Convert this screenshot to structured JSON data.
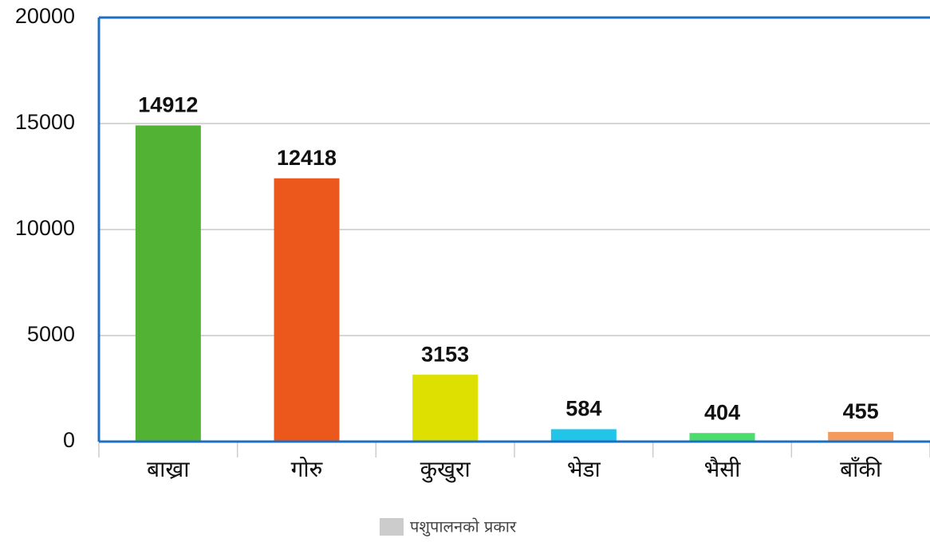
{
  "chart_data": {
    "type": "bar",
    "categories": [
      "बाख्रा",
      "गोरु",
      "कुखुरा",
      "भेडा",
      "भैसी",
      "बाँकी"
    ],
    "values": [
      14912,
      12418,
      3153,
      584,
      404,
      455
    ],
    "colors": [
      "#52b233",
      "#ec581c",
      "#dde000",
      "#22c4e8",
      "#4cdc6c",
      "#f49a5e"
    ],
    "ylim": [
      0,
      20000
    ],
    "yticks": [
      0,
      5000,
      10000,
      15000,
      20000
    ],
    "grid": true,
    "legend": {
      "label": "पशुपालनको प्रकार",
      "color": "#cccccc"
    }
  }
}
